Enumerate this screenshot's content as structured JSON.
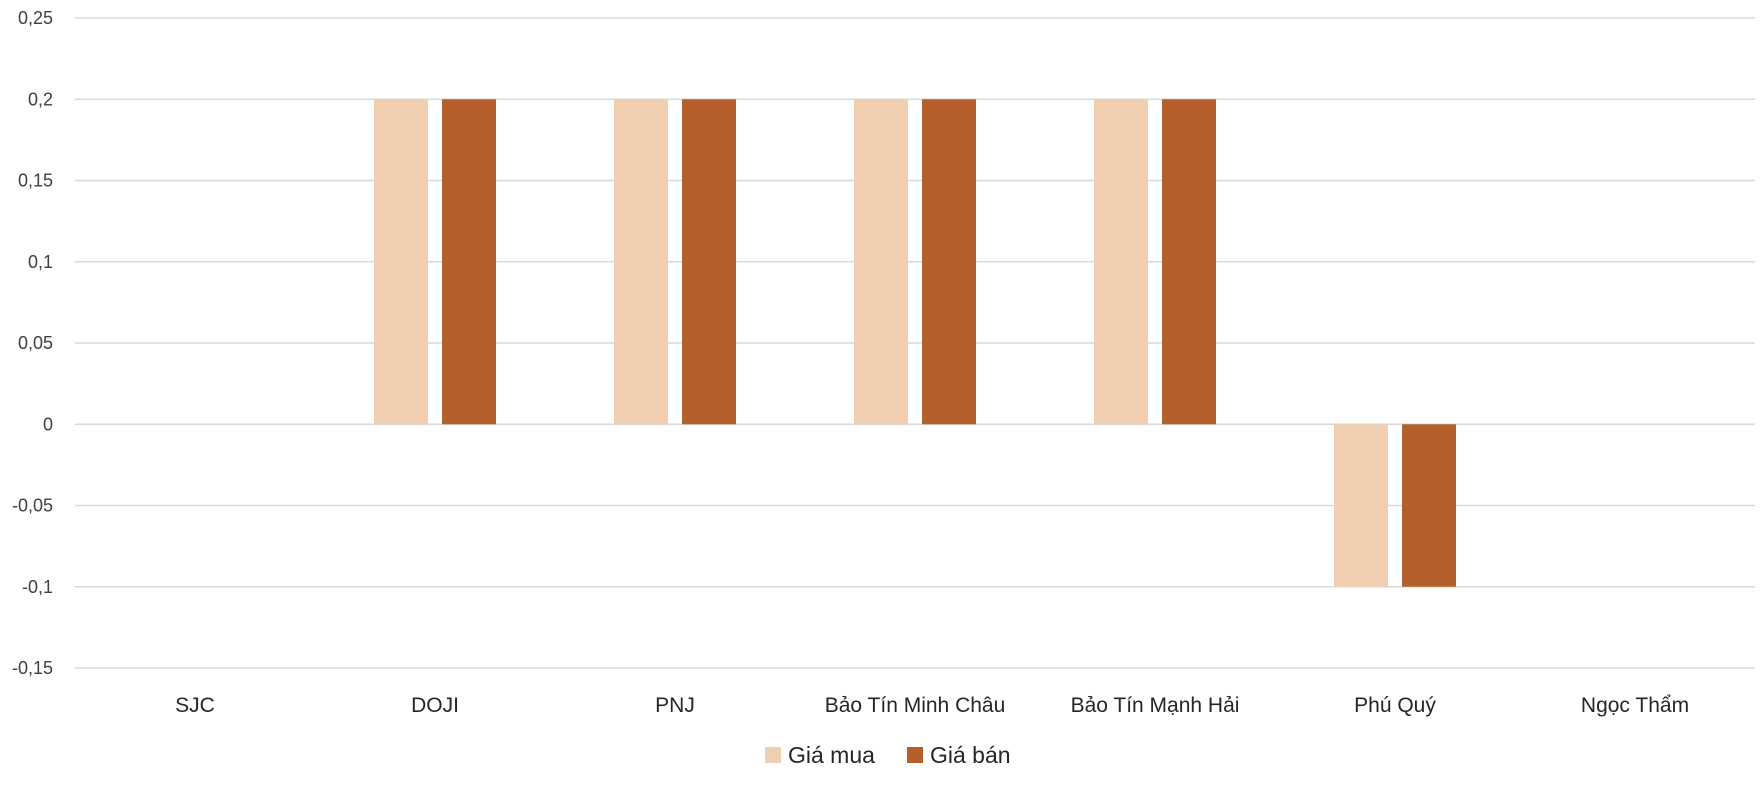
{
  "chart_data": {
    "type": "bar",
    "categories": [
      "SJC",
      "DOJI",
      "PNJ",
      "Bảo Tín Minh Châu",
      "Bảo Tín Mạnh Hải",
      "Phú Quý",
      "Ngọc Thẩm"
    ],
    "series": [
      {
        "name": "Giá mua",
        "values": [
          0,
          0.2,
          0.2,
          0.2,
          0.2,
          -0.1,
          0
        ]
      },
      {
        "name": "Giá bán",
        "values": [
          0,
          0.2,
          0.2,
          0.2,
          0.2,
          -0.1,
          0
        ]
      }
    ],
    "y_ticks": [
      "0,25",
      "0,2",
      "0,15",
      "0,1",
      "0,05",
      "0",
      "-0,05",
      "-0,1",
      "-0,15"
    ],
    "ylim": [
      -0.15,
      0.25
    ],
    "title": "",
    "xlabel": "",
    "ylabel": "",
    "grid": true,
    "legend_position": "bottom",
    "colors": {
      "Giá mua": "#F2CEB0",
      "Giá bán": "#B5602A",
      "grid": "#D9D9D9"
    }
  }
}
